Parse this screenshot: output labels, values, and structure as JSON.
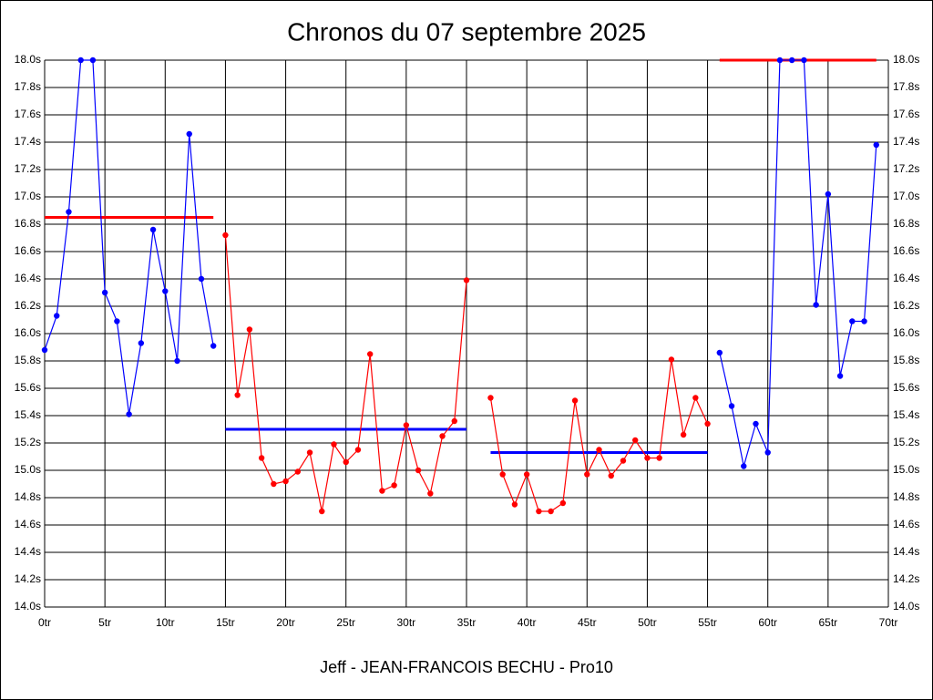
{
  "chart_data": {
    "type": "line",
    "title": "Chronos du 07 septembre 2025",
    "footer": "Jeff - JEAN-FRANCOIS BECHU - Pro10",
    "xlim": [
      0,
      70
    ],
    "ylim": [
      14.0,
      18.0
    ],
    "grid": true,
    "xticks": [
      {
        "value": 0,
        "label": "0tr"
      },
      {
        "value": 5,
        "label": "5tr"
      },
      {
        "value": 10,
        "label": "10tr"
      },
      {
        "value": 15,
        "label": "15tr"
      },
      {
        "value": 20,
        "label": "20tr"
      },
      {
        "value": 25,
        "label": "25tr"
      },
      {
        "value": 30,
        "label": "30tr"
      },
      {
        "value": 35,
        "label": "35tr"
      },
      {
        "value": 40,
        "label": "40tr"
      },
      {
        "value": 45,
        "label": "45tr"
      },
      {
        "value": 50,
        "label": "50tr"
      },
      {
        "value": 55,
        "label": "55tr"
      },
      {
        "value": 60,
        "label": "60tr"
      },
      {
        "value": 65,
        "label": "65tr"
      },
      {
        "value": 70,
        "label": "70tr"
      }
    ],
    "yticks": [
      {
        "value": 14.0,
        "label": "14.0s"
      },
      {
        "value": 14.2,
        "label": "14.2s"
      },
      {
        "value": 14.4,
        "label": "14.4s"
      },
      {
        "value": 14.6,
        "label": "14.6s"
      },
      {
        "value": 14.8,
        "label": "14.8s"
      },
      {
        "value": 15.0,
        "label": "15.0s"
      },
      {
        "value": 15.2,
        "label": "15.2s"
      },
      {
        "value": 15.4,
        "label": "15.4s"
      },
      {
        "value": 15.6,
        "label": "15.6s"
      },
      {
        "value": 15.8,
        "label": "15.8s"
      },
      {
        "value": 16.0,
        "label": "16.0s"
      },
      {
        "value": 16.2,
        "label": "16.2s"
      },
      {
        "value": 16.4,
        "label": "16.4s"
      },
      {
        "value": 16.6,
        "label": "16.6s"
      },
      {
        "value": 16.8,
        "label": "16.8s"
      },
      {
        "value": 17.0,
        "label": "17.0s"
      },
      {
        "value": 17.2,
        "label": "17.2s"
      },
      {
        "value": 17.4,
        "label": "17.4s"
      },
      {
        "value": 17.6,
        "label": "17.6s"
      },
      {
        "value": 17.8,
        "label": "17.8s"
      },
      {
        "value": 18.0,
        "label": "18.0s"
      }
    ],
    "series": [
      {
        "color": "#0000ff",
        "x": [
          0,
          1,
          2,
          3,
          4,
          5,
          6,
          7,
          8,
          9,
          10,
          11,
          12,
          13,
          14
        ],
        "values": [
          15.88,
          16.13,
          16.89,
          18.0,
          18.0,
          16.3,
          16.09,
          15.41,
          15.93,
          16.76,
          16.31,
          15.8,
          17.46,
          16.4,
          15.91
        ]
      },
      {
        "color": "#ff0000",
        "x": [
          15,
          16,
          17,
          18,
          19,
          20,
          21,
          22,
          23,
          24,
          25,
          26,
          27,
          28,
          29,
          30,
          31,
          32,
          33,
          34,
          35
        ],
        "values": [
          16.72,
          15.55,
          16.03,
          15.09,
          14.9,
          14.92,
          14.99,
          15.13,
          14.7,
          15.19,
          15.06,
          15.15,
          15.85,
          14.85,
          14.89,
          15.33,
          15.0,
          14.83,
          15.25,
          15.36,
          16.39
        ]
      },
      {
        "color": "#ff0000",
        "x": [
          37,
          38,
          39,
          40,
          41,
          42,
          43,
          44,
          45,
          46,
          47,
          48,
          49,
          50,
          51,
          52,
          53,
          54,
          55
        ],
        "values": [
          15.53,
          14.97,
          14.75,
          14.97,
          14.7,
          14.7,
          14.76,
          15.51,
          14.97,
          15.15,
          14.96,
          15.07,
          15.22,
          15.09,
          15.09,
          15.81,
          15.26,
          15.53,
          15.34
        ]
      },
      {
        "color": "#0000ff",
        "x": [
          56,
          57,
          58,
          59,
          60,
          61,
          62,
          63,
          64,
          65,
          66,
          67,
          68,
          69
        ],
        "values": [
          15.86,
          15.47,
          15.03,
          15.34,
          15.13,
          18.0,
          18.0,
          18.0,
          16.21,
          17.02,
          15.69,
          16.09,
          16.09,
          17.38
        ]
      }
    ],
    "average_lines": [
      {
        "color": "#ff0000",
        "x": [
          0,
          14
        ],
        "value": 16.85
      },
      {
        "color": "#0000ff",
        "x": [
          15,
          35
        ],
        "value": 15.3
      },
      {
        "color": "#0000ff",
        "x": [
          37,
          55
        ],
        "value": 15.13
      },
      {
        "color": "#ff0000",
        "x": [
          56,
          69
        ],
        "value": 18.0
      }
    ]
  }
}
